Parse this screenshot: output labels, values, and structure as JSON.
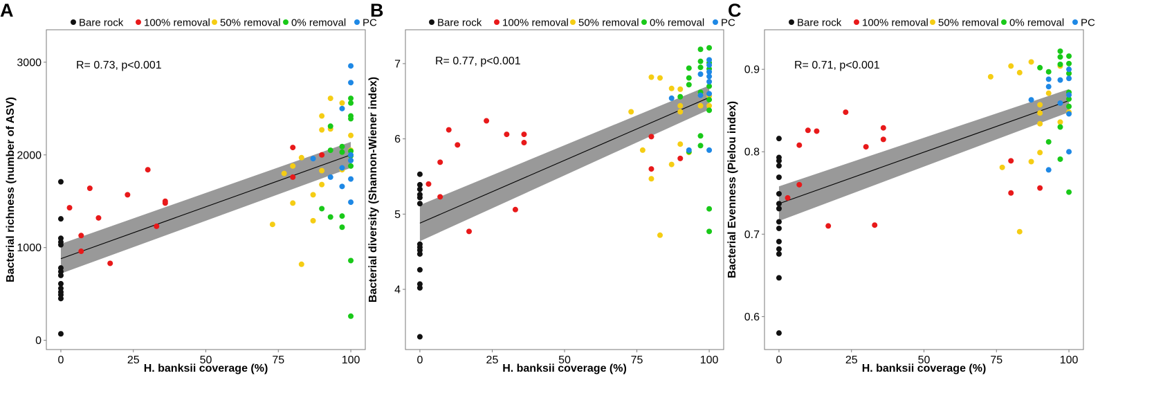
{
  "chart_data": [
    {
      "type": "scatter",
      "panel": "A",
      "xlabel": "H. banksii coverage (%)",
      "ylabel": "Bacterial richness (number of ASV)",
      "xlim": [
        -5,
        105
      ],
      "ylim": [
        -100,
        3350
      ],
      "xticks": [
        0,
        25,
        50,
        75,
        100
      ],
      "yticks": [
        0,
        1000,
        2000,
        3000
      ],
      "annotation": "R= 0.73, p<0.001",
      "fit": {
        "x0": 0,
        "y0": 880,
        "x1": 100,
        "y1": 2000,
        "band0": 160,
        "band1": 140
      },
      "series": [
        {
          "name": "Bare rock",
          "color": "#111111",
          "points": [
            [
              0,
              1710
            ],
            [
              0,
              1310
            ],
            [
              0,
              1100
            ],
            [
              0,
              1060
            ],
            [
              0,
              1030
            ],
            [
              0,
              780
            ],
            [
              0,
              740
            ],
            [
              0,
              700
            ],
            [
              0,
              610
            ],
            [
              0,
              560
            ],
            [
              0,
              520
            ],
            [
              0,
              490
            ],
            [
              0,
              450
            ],
            [
              0,
              70
            ]
          ]
        },
        {
          "name": "100% removal",
          "color": "#e8191a",
          "points": [
            [
              3,
              1430
            ],
            [
              7,
              1130
            ],
            [
              7,
              960
            ],
            [
              10,
              1640
            ],
            [
              13,
              1320
            ],
            [
              17,
              830
            ],
            [
              23,
              1570
            ],
            [
              30,
              1840
            ],
            [
              33,
              1230
            ],
            [
              36,
              1500
            ],
            [
              36,
              1480
            ],
            [
              80,
              2080
            ],
            [
              80,
              1760
            ],
            [
              90,
              2000
            ]
          ]
        },
        {
          "name": "50% removal",
          "color": "#f5cd14",
          "points": [
            [
              77,
              1800
            ],
            [
              73,
              1250
            ],
            [
              80,
              1880
            ],
            [
              80,
              1480
            ],
            [
              83,
              1970
            ],
            [
              83,
              820
            ],
            [
              87,
              1570
            ],
            [
              87,
              1290
            ],
            [
              90,
              2420
            ],
            [
              90,
              2270
            ],
            [
              90,
              1830
            ],
            [
              90,
              1680
            ],
            [
              93,
              2610
            ],
            [
              93,
              2280
            ],
            [
              97,
              2560
            ],
            [
              97,
              1840
            ],
            [
              100,
              2210
            ],
            [
              100,
              2050
            ]
          ]
        },
        {
          "name": "0% removal",
          "color": "#19c919",
          "points": [
            [
              90,
              1420
            ],
            [
              93,
              2310
            ],
            [
              93,
              2050
            ],
            [
              93,
              1330
            ],
            [
              97,
              2090
            ],
            [
              97,
              2030
            ],
            [
              97,
              1340
            ],
            [
              97,
              1220
            ],
            [
              100,
              2610
            ],
            [
              100,
              2560
            ],
            [
              100,
              2420
            ],
            [
              100,
              2390
            ],
            [
              100,
              2040
            ],
            [
              100,
              1990
            ],
            [
              100,
              1880
            ],
            [
              100,
              860
            ],
            [
              100,
              260
            ]
          ]
        },
        {
          "name": "PC",
          "color": "#1e88e5",
          "points": [
            [
              87,
              1960
            ],
            [
              93,
              1760
            ],
            [
              97,
              2500
            ],
            [
              97,
              1860
            ],
            [
              97,
              1660
            ],
            [
              100,
              2960
            ],
            [
              100,
              2780
            ],
            [
              100,
              2000
            ],
            [
              100,
              1940
            ],
            [
              100,
              1740
            ],
            [
              100,
              1490
            ]
          ]
        }
      ]
    },
    {
      "type": "scatter",
      "panel": "B",
      "xlabel": "H. banksii coverage (%)",
      "ylabel": "Bacterial diversity (Shannon-Wiener index)",
      "xlim": [
        -5,
        105
      ],
      "ylim": [
        3.2,
        7.45
      ],
      "xticks": [
        0,
        25,
        50,
        75,
        100
      ],
      "yticks": [
        4,
        5,
        6,
        7
      ],
      "annotation": "R= 0.77, p<0.001",
      "fit": {
        "x0": 0,
        "y0": 4.88,
        "x1": 100,
        "y1": 6.55,
        "band0": 0.24,
        "band1": 0.16
      },
      "series": [
        {
          "name": "Bare rock",
          "color": "#111111",
          "points": [
            [
              0,
              5.53
            ],
            [
              0,
              5.39
            ],
            [
              0,
              5.33
            ],
            [
              0,
              5.26
            ],
            [
              0,
              5.22
            ],
            [
              0,
              5.14
            ],
            [
              0,
              4.6
            ],
            [
              0,
              4.56
            ],
            [
              0,
              4.52
            ],
            [
              0,
              4.47
            ],
            [
              0,
              4.26
            ],
            [
              0,
              4.07
            ],
            [
              0,
              4.02
            ],
            [
              0,
              3.37
            ]
          ]
        },
        {
          "name": "100% removal",
          "color": "#e8191a",
          "points": [
            [
              3,
              5.4
            ],
            [
              7,
              5.69
            ],
            [
              7,
              5.23
            ],
            [
              10,
              6.12
            ],
            [
              13,
              5.92
            ],
            [
              17,
              4.77
            ],
            [
              23,
              6.24
            ],
            [
              30,
              6.06
            ],
            [
              33,
              5.06
            ],
            [
              36,
              6.06
            ],
            [
              36,
              5.95
            ],
            [
              80,
              6.03
            ],
            [
              80,
              5.6
            ],
            [
              90,
              5.74
            ]
          ]
        },
        {
          "name": "50% removal",
          "color": "#f5cd14",
          "points": [
            [
              73,
              6.36
            ],
            [
              77,
              5.85
            ],
            [
              80,
              6.82
            ],
            [
              80,
              5.47
            ],
            [
              83,
              6.81
            ],
            [
              83,
              4.72
            ],
            [
              87,
              6.67
            ],
            [
              87,
              5.66
            ],
            [
              90,
              6.66
            ],
            [
              90,
              6.44
            ],
            [
              90,
              6.36
            ],
            [
              90,
              5.93
            ],
            [
              93,
              5.82
            ],
            [
              97,
              6.44
            ],
            [
              97,
              6.6
            ],
            [
              100,
              6.57
            ],
            [
              100,
              6.44
            ]
          ]
        },
        {
          "name": "0% removal",
          "color": "#19c919",
          "points": [
            [
              90,
              6.56
            ],
            [
              93,
              6.94
            ],
            [
              93,
              6.81
            ],
            [
              93,
              6.72
            ],
            [
              93,
              5.83
            ],
            [
              97,
              7.19
            ],
            [
              97,
              7.03
            ],
            [
              97,
              6.95
            ],
            [
              97,
              6.62
            ],
            [
              97,
              6.04
            ],
            [
              97,
              5.91
            ],
            [
              100,
              7.21
            ],
            [
              100,
              7.01
            ],
            [
              100,
              6.93
            ],
            [
              100,
              6.7
            ],
            [
              100,
              6.52
            ],
            [
              100,
              6.38
            ],
            [
              100,
              5.07
            ],
            [
              100,
              4.77
            ]
          ]
        },
        {
          "name": "PC",
          "color": "#1e88e5",
          "points": [
            [
              87,
              6.54
            ],
            [
              93,
              5.85
            ],
            [
              97,
              6.86
            ],
            [
              97,
              6.58
            ],
            [
              100,
              7.05
            ],
            [
              100,
              6.98
            ],
            [
              100,
              6.89
            ],
            [
              100,
              6.83
            ],
            [
              100,
              6.76
            ],
            [
              100,
              6.6
            ],
            [
              100,
              5.85
            ]
          ]
        }
      ]
    },
    {
      "type": "scatter",
      "panel": "C",
      "xlabel": "H. banksii coverage (%)",
      "ylabel": "Bacterial Evenness (Pielou index)",
      "xlim": [
        -5,
        105
      ],
      "ylim": [
        0.56,
        0.948
      ],
      "xticks": [
        0,
        25,
        50,
        75,
        100
      ],
      "yticks": [
        0.6,
        0.7,
        0.8,
        0.9
      ],
      "annotation": "R= 0.71, p<0.001",
      "fit": {
        "x0": 0,
        "y0": 0.737,
        "x1": 100,
        "y1": 0.862,
        "band0": 0.021,
        "band1": 0.014
      },
      "series": [
        {
          "name": "Bare rock",
          "color": "#111111",
          "points": [
            [
              0,
              0.816
            ],
            [
              0,
              0.793
            ],
            [
              0,
              0.789
            ],
            [
              0,
              0.783
            ],
            [
              0,
              0.769
            ],
            [
              0,
              0.749
            ],
            [
              0,
              0.737
            ],
            [
              0,
              0.731
            ],
            [
              0,
              0.715
            ],
            [
              0,
              0.707
            ],
            [
              0,
              0.691
            ],
            [
              0,
              0.682
            ],
            [
              0,
              0.676
            ],
            [
              0,
              0.647
            ],
            [
              0,
              0.58
            ]
          ]
        },
        {
          "name": "100% removal",
          "color": "#e8191a",
          "points": [
            [
              3,
              0.744
            ],
            [
              7,
              0.808
            ],
            [
              7,
              0.76
            ],
            [
              10,
              0.826
            ],
            [
              13,
              0.825
            ],
            [
              17,
              0.71
            ],
            [
              23,
              0.848
            ],
            [
              30,
              0.806
            ],
            [
              33,
              0.711
            ],
            [
              36,
              0.829
            ],
            [
              36,
              0.815
            ],
            [
              80,
              0.789
            ],
            [
              80,
              0.75
            ],
            [
              90,
              0.756
            ]
          ]
        },
        {
          "name": "50% removal",
          "color": "#f5cd14",
          "points": [
            [
              73,
              0.891
            ],
            [
              77,
              0.781
            ],
            [
              80,
              0.904
            ],
            [
              83,
              0.896
            ],
            [
              83,
              0.703
            ],
            [
              87,
              0.909
            ],
            [
              87,
              0.788
            ],
            [
              90,
              0.857
            ],
            [
              90,
              0.847
            ],
            [
              90,
              0.834
            ],
            [
              90,
              0.799
            ],
            [
              93,
              0.871
            ],
            [
              97,
              0.836
            ],
            [
              97,
              0.904
            ],
            [
              100,
              0.895
            ],
            [
              100,
              0.848
            ]
          ]
        },
        {
          "name": "0% removal",
          "color": "#19c919",
          "points": [
            [
              90,
              0.902
            ],
            [
              93,
              0.897
            ],
            [
              93,
              0.812
            ],
            [
              97,
              0.922
            ],
            [
              97,
              0.915
            ],
            [
              97,
              0.906
            ],
            [
              97,
              0.83
            ],
            [
              97,
              0.791
            ],
            [
              100,
              0.916
            ],
            [
              100,
              0.907
            ],
            [
              100,
              0.895
            ],
            [
              100,
              0.872
            ],
            [
              100,
              0.864
            ],
            [
              100,
              0.855
            ],
            [
              100,
              0.751
            ]
          ]
        },
        {
          "name": "PC",
          "color": "#1e88e5",
          "points": [
            [
              87,
              0.863
            ],
            [
              93,
              0.888
            ],
            [
              93,
              0.879
            ],
            [
              93,
              0.778
            ],
            [
              97,
              0.887
            ],
            [
              97,
              0.859
            ],
            [
              100,
              0.9
            ],
            [
              100,
              0.889
            ],
            [
              100,
              0.869
            ],
            [
              100,
              0.846
            ],
            [
              100,
              0.8
            ]
          ]
        }
      ]
    }
  ]
}
